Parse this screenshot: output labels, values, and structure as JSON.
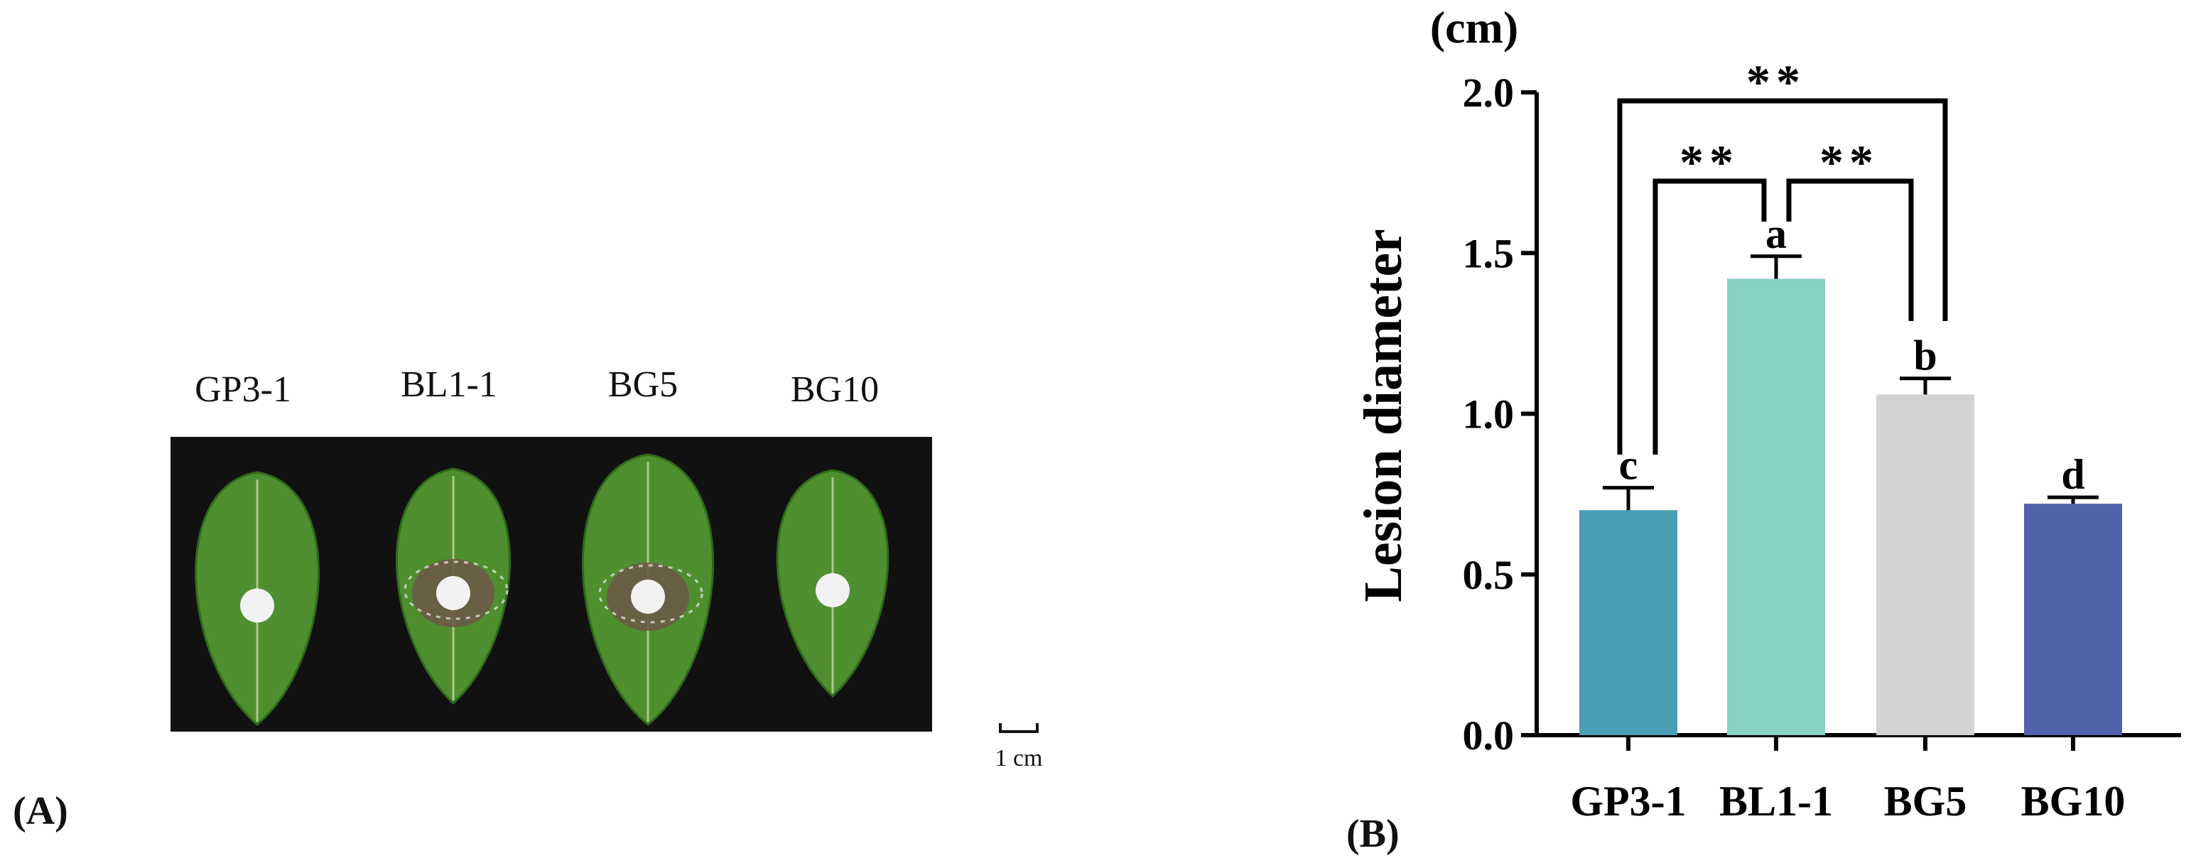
{
  "panel_a": {
    "label": "(A)",
    "leaves": [
      {
        "name": "GP3-1",
        "lesion": false
      },
      {
        "name": "BL1-1",
        "lesion": true
      },
      {
        "name": "BG5",
        "lesion": true
      },
      {
        "name": "BG10",
        "lesion": false
      }
    ],
    "scale_bar_label": "1 cm",
    "colors": {
      "background": "#111111",
      "leaf": "#4f8f2f",
      "leaf_dark": "#2f6a1c",
      "vein": "#a9c98a",
      "lesion": "#6b5a47",
      "mycelium": "#f2f2f2"
    }
  },
  "panel_b": {
    "label": "(B)",
    "unit_label": "(cm)",
    "significance": [
      {
        "pair": [
          "GP3-1",
          "BG5"
        ],
        "label": "**"
      },
      {
        "pair": [
          "GP3-1",
          "BL1-1"
        ],
        "label": "**"
      },
      {
        "pair": [
          "BL1-1",
          "BG5"
        ],
        "label": "**"
      }
    ]
  },
  "chart_data": {
    "type": "bar",
    "categories": [
      "GP3-1",
      "BL1-1",
      "BG5",
      "BG10"
    ],
    "values": [
      0.7,
      1.42,
      1.06,
      0.72
    ],
    "errors": [
      0.07,
      0.07,
      0.05,
      0.02
    ],
    "letters": [
      "c",
      "a",
      "b",
      "d"
    ],
    "colors": [
      "#4a9fb4",
      "#88d2c8",
      "#d3d3d3",
      "#4f62aa"
    ],
    "ylabel": "Lesion diameter",
    "yticks": [
      "0.0",
      "0.5",
      "1.0",
      "1.5",
      "2.0"
    ],
    "ylim": [
      0,
      2.0
    ],
    "grid": false
  }
}
